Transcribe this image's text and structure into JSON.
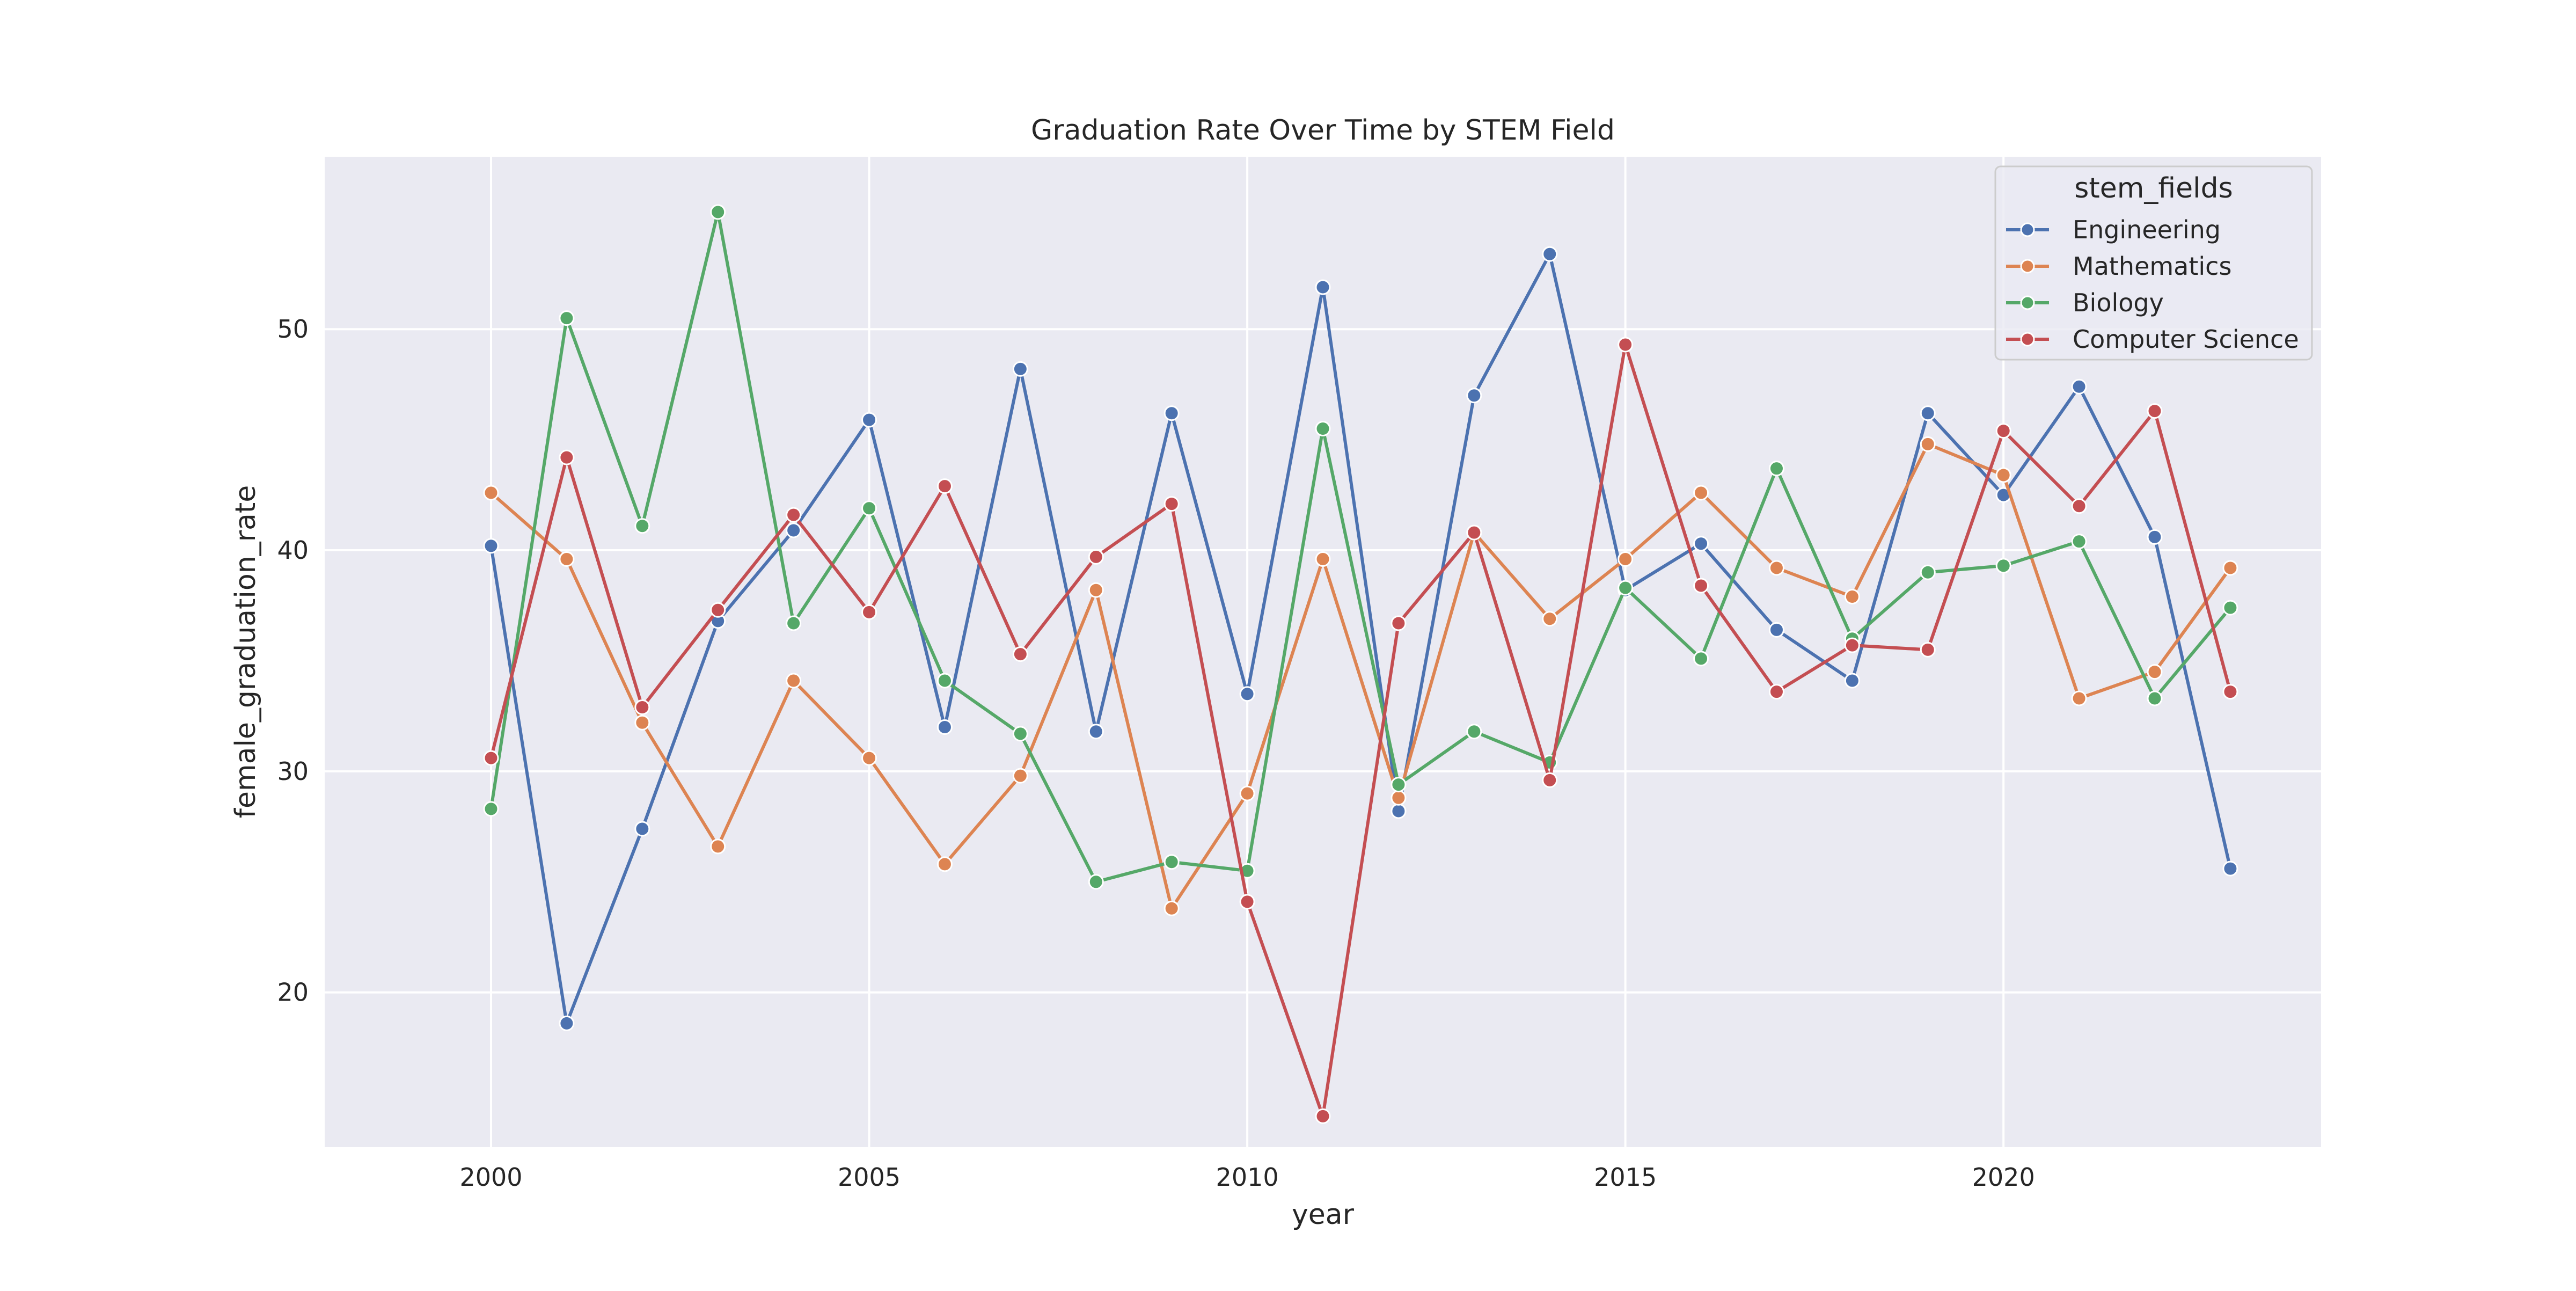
{
  "chart_data": {
    "type": "line",
    "title": "Graduation Rate Over Time by STEM Field",
    "xlabel": "year",
    "ylabel": "female_graduation_rate",
    "xlim": [
      1997.8,
      2024.2
    ],
    "ylim": [
      13.0,
      57.8
    ],
    "xticks": [
      2000,
      2005,
      2010,
      2015,
      2020
    ],
    "yticks": [
      20,
      30,
      40,
      50
    ],
    "grid": true,
    "legend": {
      "title": "stem_fields",
      "position": "top-right"
    },
    "x": [
      2000,
      2001,
      2002,
      2003,
      2004,
      2005,
      2006,
      2007,
      2008,
      2009,
      2010,
      2011,
      2012,
      2013,
      2014,
      2015,
      2016,
      2017,
      2018,
      2019,
      2020,
      2021,
      2022,
      2023
    ],
    "series": [
      {
        "name": "Engineering",
        "color": "#4c72b0",
        "values": [
          40.2,
          18.6,
          27.4,
          36.8,
          40.9,
          45.9,
          32.0,
          48.2,
          31.8,
          46.2,
          33.5,
          51.9,
          28.2,
          47.0,
          53.4,
          38.2,
          40.3,
          36.4,
          34.1,
          46.2,
          42.5,
          47.4,
          40.6,
          25.6
        ]
      },
      {
        "name": "Mathematics",
        "color": "#dd8452",
        "values": [
          42.6,
          39.6,
          32.2,
          26.6,
          34.1,
          30.6,
          25.8,
          29.8,
          38.2,
          23.8,
          29.0,
          39.6,
          28.8,
          40.8,
          36.9,
          39.6,
          42.6,
          39.2,
          37.9,
          44.8,
          43.4,
          33.3,
          34.5,
          39.2
        ]
      },
      {
        "name": "Biology",
        "color": "#55a868",
        "values": [
          28.3,
          50.5,
          41.1,
          55.3,
          36.7,
          41.9,
          34.1,
          31.7,
          25.0,
          25.9,
          25.5,
          45.5,
          29.4,
          31.8,
          30.4,
          38.3,
          35.1,
          43.7,
          36.0,
          39.0,
          39.3,
          40.4,
          33.3,
          37.4
        ]
      },
      {
        "name": "Computer Science",
        "color": "#c44e52",
        "values": [
          30.6,
          44.2,
          32.9,
          37.3,
          41.6,
          37.2,
          42.9,
          35.3,
          39.7,
          42.1,
          24.1,
          14.4,
          36.7,
          40.8,
          29.6,
          49.3,
          38.4,
          33.6,
          35.7,
          35.5,
          45.4,
          42.0,
          46.3,
          33.6
        ]
      }
    ]
  }
}
